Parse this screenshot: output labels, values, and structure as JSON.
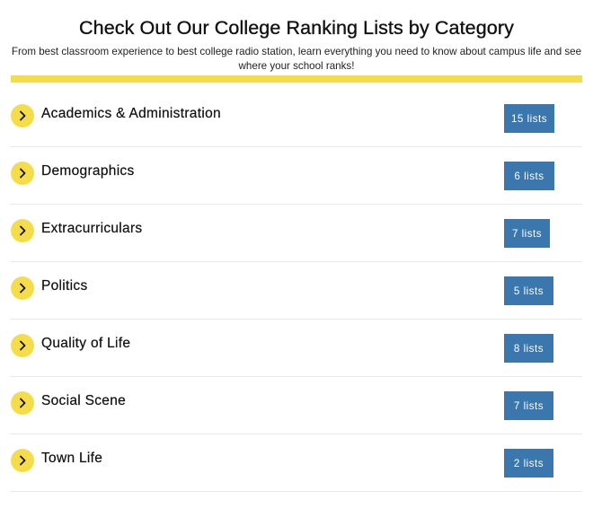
{
  "header": {
    "title": "Check Out Our College Ranking Lists by Category",
    "subtitle": "From best classroom experience to best college radio station, learn everything you need to know about campus life and see where your school ranks!"
  },
  "colors": {
    "accent": "#f5dc4a",
    "badge": "#3b77ad"
  },
  "categories": [
    {
      "label": "Academics & Administration",
      "count_label": "15 lists",
      "icon": "chevron-right-icon"
    },
    {
      "label": "Demographics",
      "count_label": "6 lists",
      "icon": "chevron-right-icon"
    },
    {
      "label": "Extracurriculars",
      "count_label": "7 lists",
      "icon": "chevron-right-icon"
    },
    {
      "label": "Politics",
      "count_label": "5 lists",
      "icon": "chevron-right-icon"
    },
    {
      "label": "Quality of Life",
      "count_label": "8 lists",
      "icon": "chevron-right-icon"
    },
    {
      "label": "Social Scene",
      "count_label": "7 lists",
      "icon": "chevron-right-icon"
    },
    {
      "label": "Town Life",
      "count_label": "2 lists",
      "icon": "chevron-right-icon"
    }
  ]
}
